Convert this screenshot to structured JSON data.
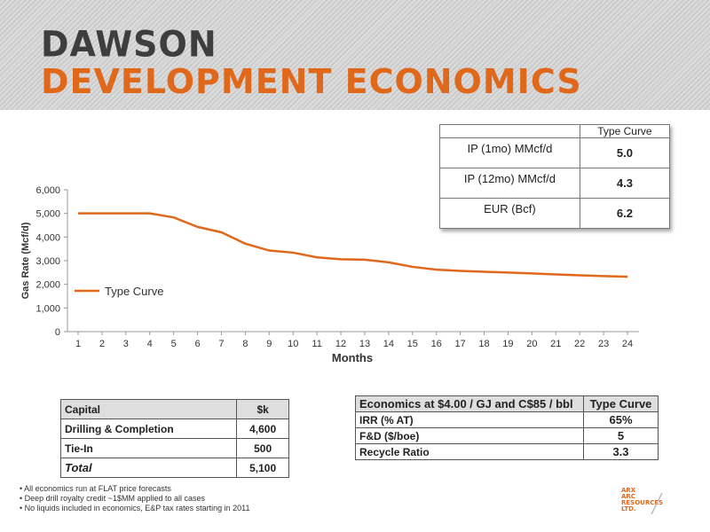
{
  "header": {
    "title_line1": "DAWSON",
    "title_line2": "DEVELOPMENT ECONOMICS"
  },
  "colors": {
    "accent": "#e0681b",
    "title_gray": "#3e3e3e",
    "line": "#e0681b"
  },
  "chart_data": {
    "type": "line",
    "xlabel": "Months",
    "ylabel": "Gas Rate (Mcf/d)",
    "ylim": [
      0,
      6000
    ],
    "yticks": [
      "0",
      "1,000",
      "2,000",
      "3,000",
      "4,000",
      "5,000",
      "6,000"
    ],
    "x": [
      1,
      2,
      3,
      4,
      5,
      6,
      7,
      8,
      9,
      10,
      11,
      12,
      13,
      14,
      15,
      16,
      17,
      18,
      19,
      20,
      21,
      22,
      23,
      24
    ],
    "series": [
      {
        "name": "Type Curve",
        "values": [
          5000,
          5000,
          5000,
          5000,
          4830,
          4430,
          4200,
          3720,
          3430,
          3340,
          3140,
          3060,
          3040,
          2930,
          2740,
          2620,
          2570,
          2530,
          2500,
          2460,
          2420,
          2380,
          2350,
          2320
        ]
      }
    ],
    "legend": "left-middle",
    "grid": false
  },
  "type_curve_table": {
    "header": "Type Curve",
    "rows": [
      {
        "label": "IP (1mo) MMcf/d",
        "value": "5.0"
      },
      {
        "label": "IP (12mo) MMcf/d",
        "value": "4.3"
      },
      {
        "label": "EUR (Bcf)",
        "value": "6.2"
      }
    ]
  },
  "capital_table": {
    "header": {
      "label": "Capital",
      "value": "$k"
    },
    "rows": [
      {
        "label": "Drilling & Completion",
        "value": "4,600"
      },
      {
        "label": "Tie-In",
        "value": "500"
      }
    ],
    "total": {
      "label": "Total",
      "value": "5,100"
    }
  },
  "economics_table": {
    "header": {
      "label": "Economics at $4.00 / GJ and C$85 / bbl",
      "value": "Type Curve"
    },
    "rows": [
      {
        "label": "IRR (% AT)",
        "value": "65%"
      },
      {
        "label": "F&D ($/boe)",
        "value": "5"
      },
      {
        "label": "Recycle Ratio",
        "value": "3.3"
      }
    ]
  },
  "notes": [
    "• All economics run at FLAT price forecasts",
    "• Deep drill royalty credit ~1$MM applied to all cases",
    "• No liquids included in economics, E&P tax rates starting in 2011"
  ],
  "logo": {
    "line1": "ARX",
    "line2": "ARC",
    "line3": "RESOURCES",
    "line4": "LTD."
  }
}
